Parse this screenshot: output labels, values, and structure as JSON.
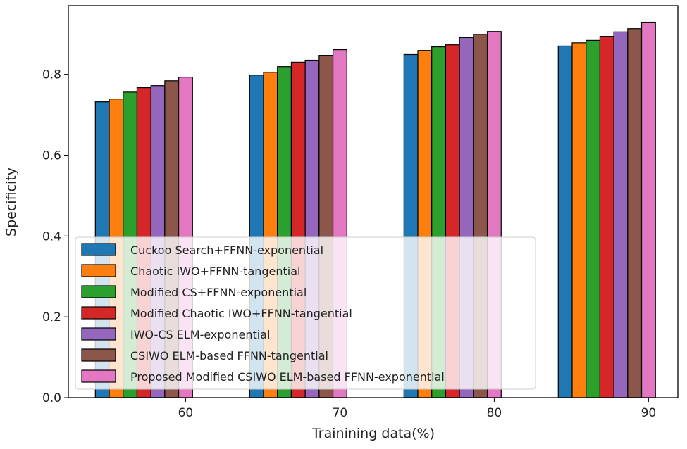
{
  "chart_data": {
    "type": "bar",
    "title": "",
    "xlabel": "Trainining data(%)",
    "ylabel": "Specificity",
    "categories": [
      "60",
      "70",
      "80",
      "90"
    ],
    "x": [
      60,
      70,
      80,
      90
    ],
    "xlim": [
      52.4,
      91.9
    ],
    "ylim": [
      0,
      0.97
    ],
    "yticks": [
      "0.0",
      "0.2",
      "0.4",
      "0.6",
      "0.8"
    ],
    "ytick_values": [
      0,
      0.2,
      0.4,
      0.6,
      0.8
    ],
    "grid": false,
    "legend_position": "lower-left",
    "series": [
      {
        "name": "Cuckoo Search+FFNN-exponential",
        "color": "#1f77b4",
        "values": [
          0.732,
          0.798,
          0.849,
          0.87
        ]
      },
      {
        "name": "Chaotic IWO+FFNN-tangential",
        "color": "#ff7f0e",
        "values": [
          0.739,
          0.805,
          0.859,
          0.878
        ]
      },
      {
        "name": "Modified CS+FFNN-exponential",
        "color": "#2ca02c",
        "values": [
          0.756,
          0.819,
          0.868,
          0.884
        ]
      },
      {
        "name": "Modified Chaotic IWO+FFNN-tangential",
        "color": "#d62728",
        "values": [
          0.767,
          0.83,
          0.873,
          0.894
        ]
      },
      {
        "name": "IWO-CS ELM-exponential",
        "color": "#9467bd",
        "values": [
          0.772,
          0.835,
          0.891,
          0.905
        ]
      },
      {
        "name": "CSIWO ELM-based FFNN-tangential",
        "color": "#8c564b",
        "values": [
          0.784,
          0.847,
          0.899,
          0.913
        ]
      },
      {
        "name": "Proposed Modified CSIWO ELM-based FFNN-exponential",
        "color": "#e377c2",
        "values": [
          0.793,
          0.861,
          0.906,
          0.929
        ]
      }
    ]
  }
}
